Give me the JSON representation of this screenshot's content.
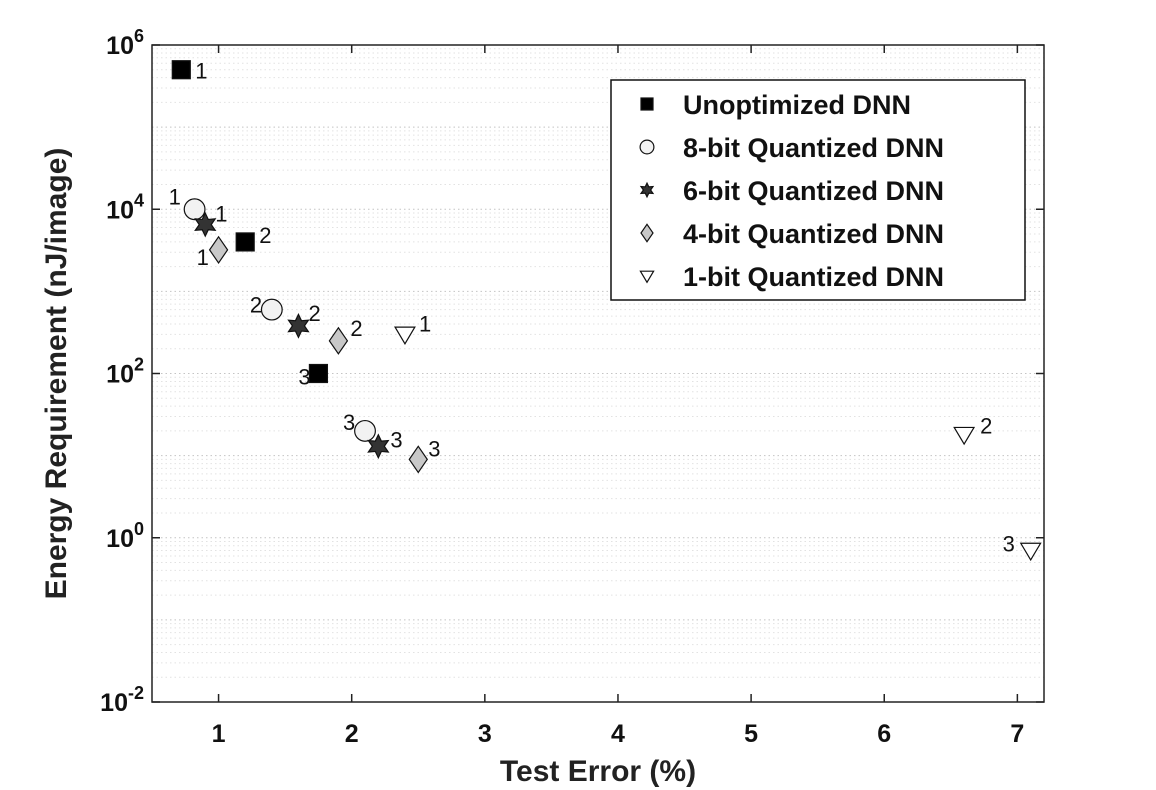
{
  "chart_data": {
    "type": "scatter",
    "title": "",
    "xlabel": "Test Error (%)",
    "ylabel": "Energy Requirement (nJ/image)",
    "xlim": [
      0.5,
      7.2
    ],
    "ylim": [
      0.01,
      1000000
    ],
    "yscale": "log",
    "xticks": [
      1,
      2,
      3,
      4,
      5,
      6,
      7
    ],
    "yticks": [
      {
        "value": 0.01,
        "base": "10",
        "exp": "-2"
      },
      {
        "value": 1,
        "base": "10",
        "exp": "0"
      },
      {
        "value": 100,
        "base": "10",
        "exp": "2"
      },
      {
        "value": 10000,
        "base": "10",
        "exp": "4"
      },
      {
        "value": 1000000,
        "base": "10",
        "exp": "6"
      }
    ],
    "grid": true,
    "legend_position": "top-right",
    "series": [
      {
        "name": "Unoptimized DNN",
        "marker": "square",
        "color": "#000000",
        "points": [
          {
            "x": 0.72,
            "y": 500000,
            "label": "1"
          },
          {
            "x": 1.2,
            "y": 4000,
            "label": "2"
          },
          {
            "x": 1.75,
            "y": 100,
            "label": "3"
          }
        ]
      },
      {
        "name": "8-bit Quantized DNN",
        "marker": "circle",
        "color": "#f2f2f2",
        "points": [
          {
            "x": 0.82,
            "y": 10000,
            "label": "1"
          },
          {
            "x": 1.4,
            "y": 600,
            "label": "2"
          },
          {
            "x": 2.1,
            "y": 20,
            "label": "3"
          }
        ]
      },
      {
        "name": "6-bit Quantized DNN",
        "marker": "star",
        "color": "#333333",
        "points": [
          {
            "x": 0.9,
            "y": 6500,
            "label": "1"
          },
          {
            "x": 1.6,
            "y": 380,
            "label": "2"
          },
          {
            "x": 2.2,
            "y": 13,
            "label": "3"
          }
        ]
      },
      {
        "name": "4-bit Quantized DNN",
        "marker": "diamond",
        "color": "#c8c8c8",
        "points": [
          {
            "x": 1.0,
            "y": 3200,
            "label": "1"
          },
          {
            "x": 1.9,
            "y": 250,
            "label": "2"
          },
          {
            "x": 2.5,
            "y": 9,
            "label": "3"
          }
        ]
      },
      {
        "name": "1-bit Quantized DNN",
        "marker": "triangle-down",
        "color": "#ffffff",
        "points": [
          {
            "x": 2.4,
            "y": 300,
            "label": "1"
          },
          {
            "x": 6.6,
            "y": 18,
            "label": "2"
          },
          {
            "x": 7.1,
            "y": 0.7,
            "label": "3"
          }
        ]
      }
    ]
  }
}
